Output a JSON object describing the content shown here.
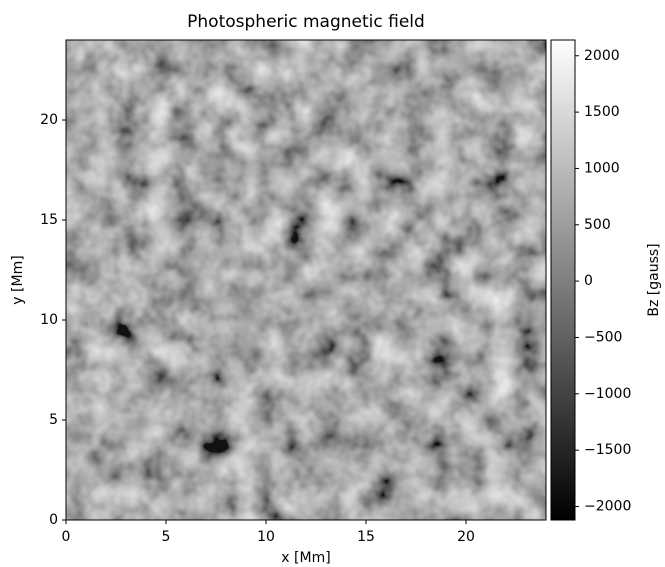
{
  "chart_data": {
    "type": "heatmap",
    "title": "Photospheric magnetic field",
    "xlabel": "x [Mm]",
    "ylabel": "y [Mm]",
    "xlim": [
      0,
      24
    ],
    "ylim": [
      0,
      24
    ],
    "xticks": [
      0,
      5,
      10,
      15,
      20
    ],
    "yticks": [
      0,
      5,
      10,
      15,
      20
    ],
    "colormap": "gray",
    "colorbar": {
      "label": "Bz [gauss]",
      "clim": [
        -2120,
        2140
      ],
      "ticks": [
        {
          "value": -2000,
          "label": "−2000"
        },
        {
          "value": -1500,
          "label": "−1500"
        },
        {
          "value": -1000,
          "label": "−1000"
        },
        {
          "value": -500,
          "label": "−500"
        },
        0,
        500,
        1000,
        1500,
        2000
      ]
    }
  }
}
